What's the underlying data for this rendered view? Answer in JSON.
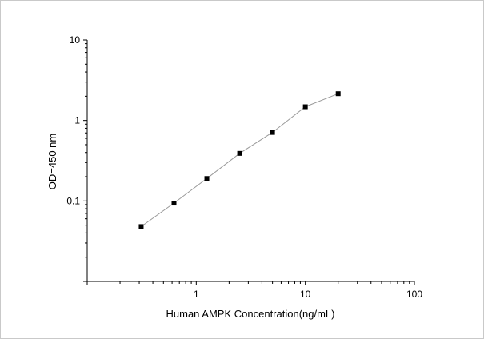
{
  "chart_data": {
    "type": "line",
    "title": "",
    "xlabel": "Human AMPK Concentration(ng/mL)",
    "ylabel": "OD=450 nm",
    "x_scale": "log",
    "y_scale": "log",
    "xlim": [
      0.1,
      100
    ],
    "ylim": [
      0.01,
      10
    ],
    "x_ticks": [
      {
        "value": 1,
        "label": "1"
      },
      {
        "value": 10,
        "label": "10"
      },
      {
        "value": 100,
        "label": "100"
      }
    ],
    "y_ticks": [
      {
        "value": 0.1,
        "label": "0.1"
      },
      {
        "value": 1,
        "label": "1"
      },
      {
        "value": 10,
        "label": "10"
      }
    ],
    "grid": false,
    "legend": "none",
    "series": [
      {
        "x": [
          0.3125,
          0.625,
          1.25,
          2.5,
          5,
          10,
          20
        ],
        "y": [
          0.048,
          0.094,
          0.19,
          0.39,
          0.71,
          1.48,
          2.15
        ],
        "line_color": "#9a9a9a",
        "marker_color": "#000000",
        "marker": "square"
      }
    ]
  }
}
